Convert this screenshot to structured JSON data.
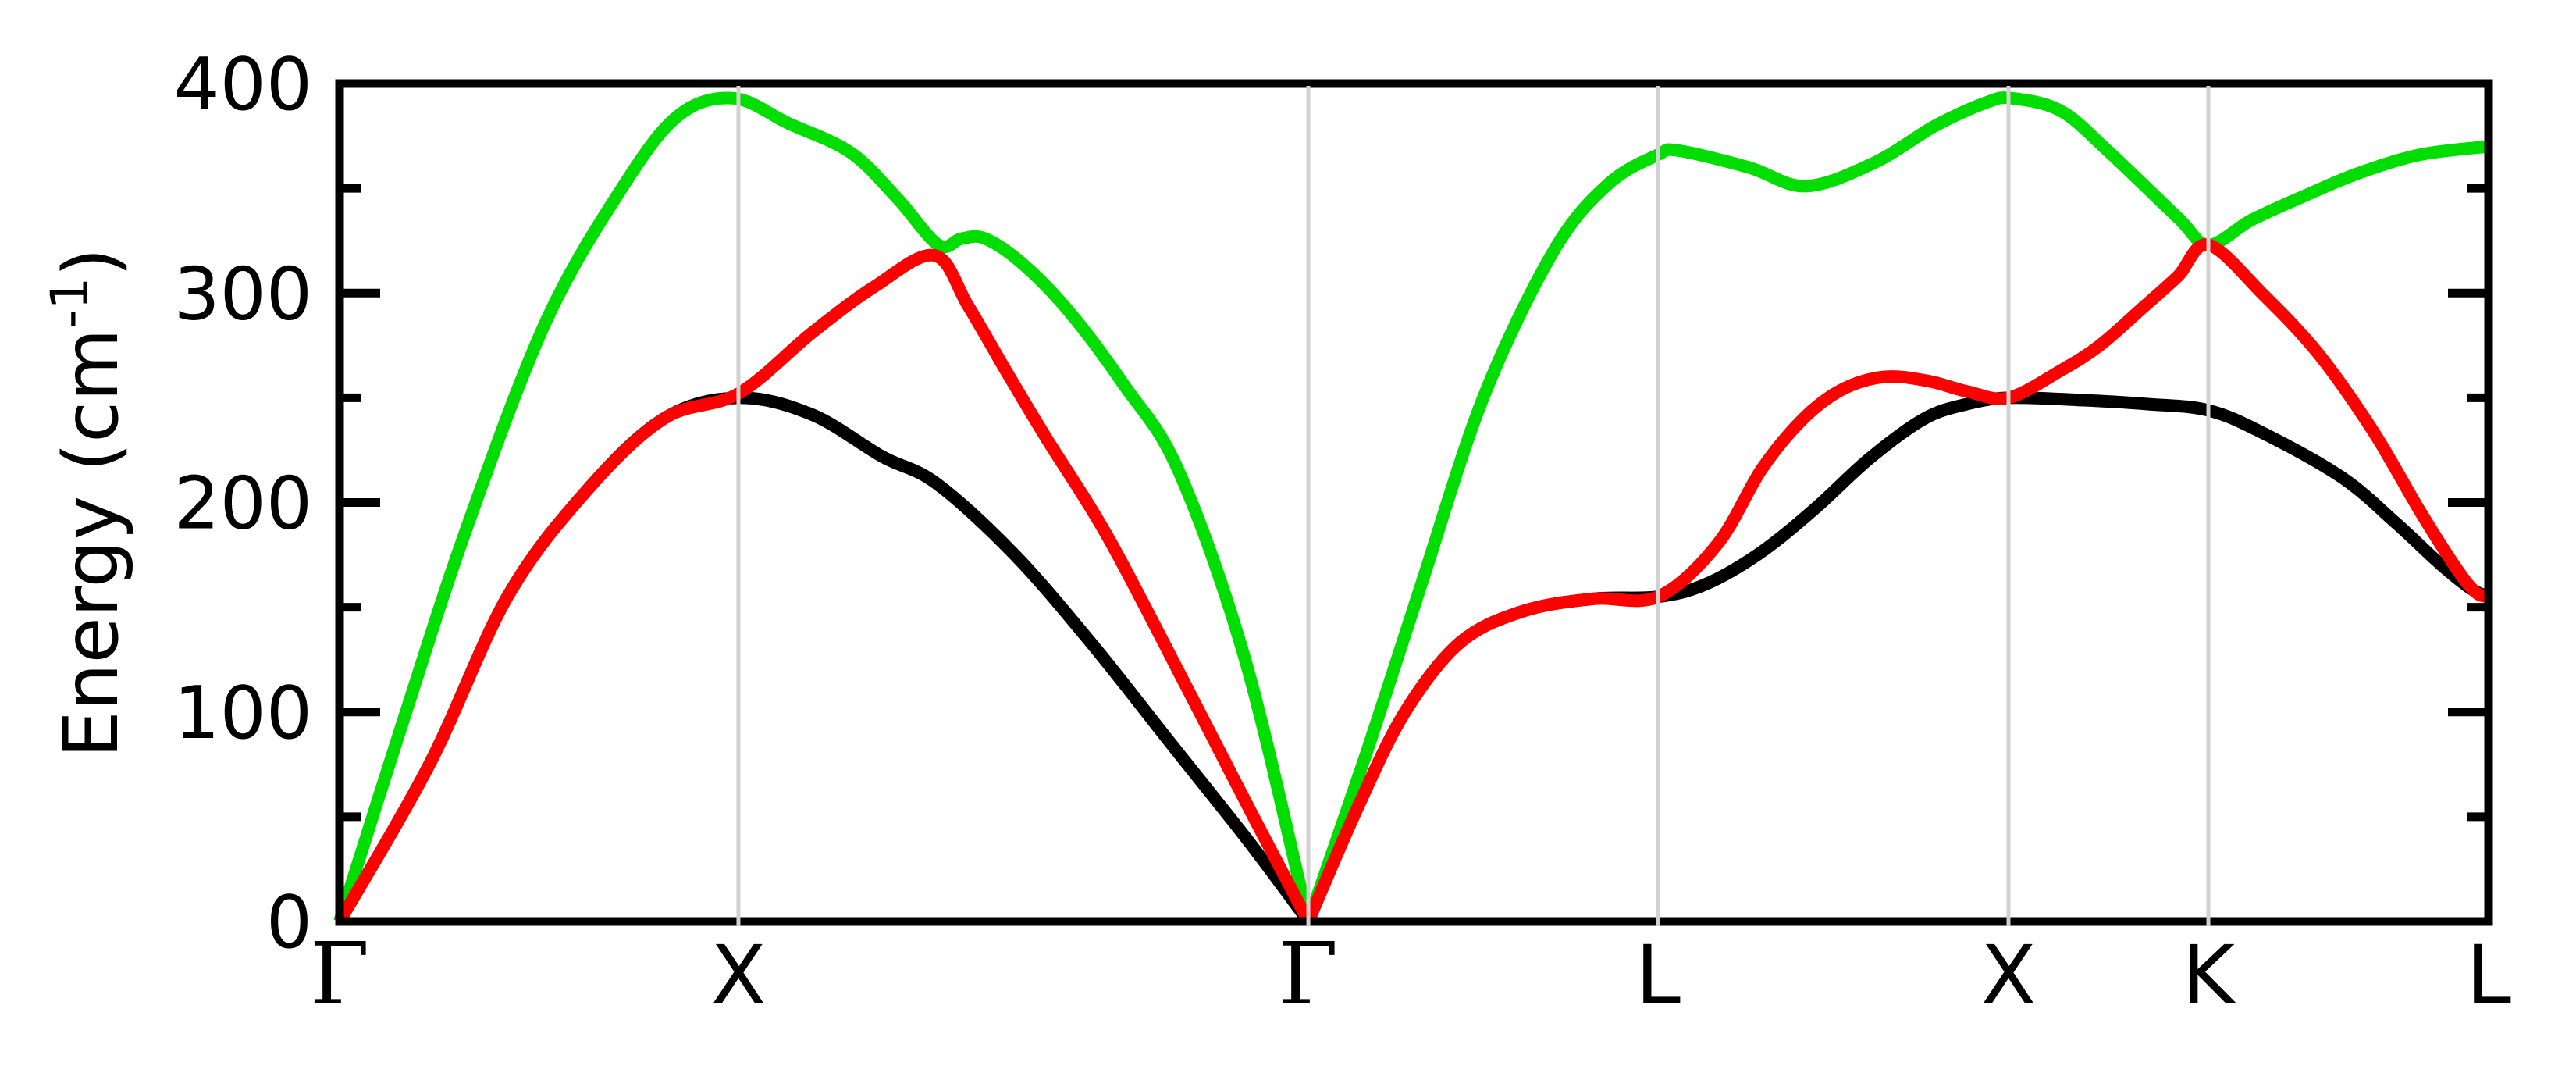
{
  "chart_data": {
    "type": "line",
    "title": "",
    "ylabel": "Energy (cm⁻¹)",
    "ylabel_parts": {
      "base": "Energy (cm",
      "sup": "-1",
      "close": ")"
    },
    "ylim": [
      0,
      400
    ],
    "yticks_major": [
      0,
      100,
      200,
      300,
      400
    ],
    "yticks_minor": [
      50,
      150,
      250,
      350
    ],
    "grid": "vertical-at-high-symmetry-points",
    "legend": "none",
    "x_path_points": [
      {
        "label": "Γ",
        "f": 0.0,
        "greek": true
      },
      {
        "label": "X",
        "f": 0.1856,
        "greek": false
      },
      {
        "label": "Γ",
        "f": 0.4508,
        "greek": true
      },
      {
        "label": "L",
        "f": 0.6135,
        "greek": false
      },
      {
        "label": "X",
        "f": 0.7766,
        "greek": false
      },
      {
        "label": "K",
        "f": 0.8696,
        "greek": false
      },
      {
        "label": "L",
        "f": 1.0,
        "greek": false
      }
    ],
    "x_gridlines_f": [
      0.1856,
      0.4508,
      0.6135,
      0.7766,
      0.8696
    ],
    "colors": {
      "black_branch": "#000000",
      "red_branch": "#ff0000",
      "green_branch": "#00dd00",
      "gridline": "#d2d2d2"
    },
    "series": [
      {
        "name": "acoustic-branch-black",
        "color": "#000000",
        "segments": [
          [
            [
              0.0,
              0
            ],
            [
              0.0418,
              75
            ],
            [
              0.0781,
              155
            ],
            [
              0.1144,
              205
            ],
            [
              0.1508,
              240
            ],
            [
              0.1856,
              250
            ],
            [
              0.2198,
              242
            ],
            [
              0.2524,
              222
            ],
            [
              0.2779,
              209
            ],
            [
              0.3142,
              175
            ],
            [
              0.3505,
              132
            ],
            [
              0.3868,
              85
            ],
            [
              0.4232,
              38
            ],
            [
              0.4508,
              0
            ]
          ],
          [
            [
              0.4508,
              0
            ],
            [
              0.474,
              55
            ],
            [
              0.4958,
              100
            ],
            [
              0.5212,
              133
            ],
            [
              0.5503,
              148
            ],
            [
              0.583,
              154
            ],
            [
              0.6135,
              155
            ],
            [
              0.6357,
              161
            ],
            [
              0.6611,
              176
            ],
            [
              0.6865,
              197
            ],
            [
              0.7119,
              221
            ],
            [
              0.7374,
              240
            ],
            [
              0.7574,
              247
            ],
            [
              0.7766,
              250
            ],
            [
              0.8082,
              249
            ],
            [
              0.8409,
              247
            ],
            [
              0.8696,
              244
            ],
            [
              0.8954,
              233
            ],
            [
              0.9317,
              212
            ],
            [
              0.9571,
              190
            ],
            [
              0.9771,
              171
            ],
            [
              0.9916,
              159
            ],
            [
              1.0,
              155
            ]
          ]
        ]
      },
      {
        "name": "acoustic-branch-green",
        "color": "#00dd00",
        "segments": [
          [
            [
              0.0,
              0
            ],
            [
              0.0309,
              100
            ],
            [
              0.0599,
              190
            ],
            [
              0.0963,
              287
            ],
            [
              0.1326,
              352
            ],
            [
              0.158,
              385
            ],
            [
              0.1834,
              393
            ],
            [
              0.2089,
              381
            ],
            [
              0.2379,
              367
            ],
            [
              0.2597,
              345
            ],
            [
              0.2786,
              323
            ],
            [
              0.2895,
              326
            ],
            [
              0.3004,
              326
            ],
            [
              0.3178,
              314
            ],
            [
              0.3396,
              291
            ],
            [
              0.3651,
              256
            ],
            [
              0.3905,
              215
            ],
            [
              0.4214,
              125
            ],
            [
              0.4508,
              0
            ]
          ],
          [
            [
              0.4508,
              0
            ],
            [
              0.4777,
              80
            ],
            [
              0.5031,
              160
            ],
            [
              0.5322,
              250
            ],
            [
              0.5649,
              320
            ],
            [
              0.5903,
              352
            ],
            [
              0.6135,
              366
            ],
            [
              0.6229,
              368
            ],
            [
              0.6557,
              360
            ],
            [
              0.6822,
              351
            ],
            [
              0.7138,
              362
            ],
            [
              0.7428,
              380
            ],
            [
              0.7664,
              391
            ],
            [
              0.7781,
              393
            ],
            [
              0.8009,
              387
            ],
            [
              0.8227,
              368
            ],
            [
              0.8554,
              336
            ],
            [
              0.8696,
              323
            ],
            [
              0.8899,
              335
            ],
            [
              0.9135,
              346
            ],
            [
              0.939,
              357
            ],
            [
              0.968,
              366
            ],
            [
              1.0,
              370
            ]
          ]
        ]
      },
      {
        "name": "acoustic-branch-red",
        "color": "#ff0000",
        "segments": [
          [
            [
              0.0,
              0
            ],
            [
              0.0418,
              75
            ],
            [
              0.0781,
              155
            ],
            [
              0.1144,
              205
            ],
            [
              0.1508,
              240
            ],
            [
              0.1856,
              252
            ],
            [
              0.2198,
              281
            ],
            [
              0.2488,
              303
            ],
            [
              0.2768,
              318
            ],
            [
              0.2924,
              294
            ],
            [
              0.3106,
              262
            ],
            [
              0.3287,
              231
            ],
            [
              0.3578,
              183
            ],
            [
              0.3941,
              112
            ],
            [
              0.4232,
              54
            ],
            [
              0.4508,
              0
            ]
          ],
          [
            [
              0.4508,
              0
            ],
            [
              0.474,
              55
            ],
            [
              0.4958,
              100
            ],
            [
              0.5212,
              133
            ],
            [
              0.5503,
              148
            ],
            [
              0.583,
              154
            ],
            [
              0.6135,
              155
            ],
            [
              0.6411,
              180
            ],
            [
              0.6618,
              216
            ],
            [
              0.6811,
              240
            ],
            [
              0.6993,
              254
            ],
            [
              0.7192,
              260
            ],
            [
              0.7392,
              258
            ],
            [
              0.7574,
              253
            ],
            [
              0.7766,
              250
            ],
            [
              0.8009,
              263
            ],
            [
              0.8191,
              275
            ],
            [
              0.8391,
              293
            ],
            [
              0.8554,
              308
            ],
            [
              0.8696,
              323
            ],
            [
              0.8954,
              299
            ],
            [
              0.9208,
              271
            ],
            [
              0.9463,
              234
            ],
            [
              0.968,
              196
            ],
            [
              0.9854,
              168
            ],
            [
              0.9942,
              157
            ],
            [
              1.0,
              155
            ]
          ]
        ]
      }
    ]
  }
}
